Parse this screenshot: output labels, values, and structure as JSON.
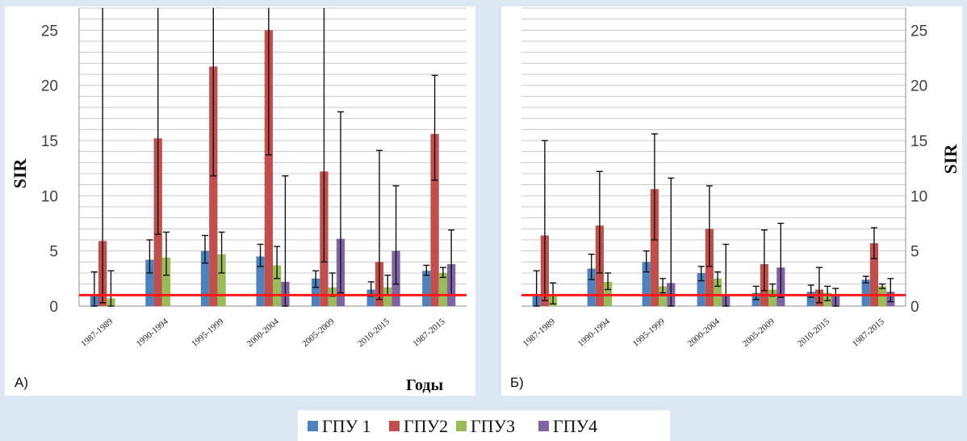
{
  "legend": [
    {
      "name": "ГПУ 1",
      "color": "#4f81bd"
    },
    {
      "name": "ГПУ2",
      "color": "#c0504d"
    },
    {
      "name": "ГПУ3",
      "color": "#9bbb59"
    },
    {
      "name": "ГПУ4",
      "color": "#8064a2"
    }
  ],
  "chart_data": [
    {
      "type": "bar",
      "panel_label": "А)",
      "ylabel": "SIR",
      "xlabel": "Годы",
      "ylim": [
        0,
        27
      ],
      "yticks": [
        0,
        5,
        10,
        15,
        20,
        25
      ],
      "grid": true,
      "y_axis_side": "left",
      "reference_line": 1,
      "categories": [
        "1987-1989",
        "1990-1994",
        "1995-1999",
        "2000-2004",
        "2005-2009",
        "2010-2015",
        "1987-2015"
      ],
      "series": [
        {
          "name": "ГПУ 1",
          "color": "#4f81bd",
          "values": [
            1.0,
            4.2,
            5.0,
            4.5,
            2.5,
            1.5,
            3.2
          ],
          "err_low": [
            0.0,
            3.0,
            3.9,
            3.6,
            1.7,
            0.9,
            2.8
          ],
          "err_high": [
            3.1,
            6.0,
            6.4,
            5.6,
            3.2,
            2.2,
            3.7
          ]
        },
        {
          "name": "ГПУ2",
          "color": "#c0504d",
          "values": [
            5.9,
            15.2,
            21.7,
            25.0,
            12.2,
            4.0,
            15.6
          ],
          "err_low": [
            0.3,
            6.5,
            11.8,
            13.7,
            4.0,
            0.6,
            11.4
          ],
          "err_high": [
            27,
            27,
            27,
            27,
            27,
            14.1,
            20.9
          ]
        },
        {
          "name": "ГПУ3",
          "color": "#9bbb59",
          "values": [
            0.7,
            4.4,
            4.7,
            3.7,
            1.7,
            1.7,
            3.0
          ],
          "err_low": [
            0.0,
            2.8,
            3.0,
            2.5,
            0.9,
            1.0,
            2.6
          ],
          "err_high": [
            3.2,
            6.7,
            6.7,
            5.4,
            3.0,
            2.8,
            3.5
          ]
        },
        {
          "name": "ГПУ4",
          "color": "#8064a2",
          "values": [
            0.0,
            0.0,
            0.0,
            2.2,
            6.1,
            5.0,
            3.8
          ],
          "err_low": [
            0.0,
            0.0,
            0.0,
            0.0,
            1.2,
            2.0,
            1.0
          ],
          "err_high": [
            0.0,
            0.0,
            0.0,
            11.8,
            17.6,
            10.9,
            6.9
          ]
        }
      ]
    },
    {
      "type": "bar",
      "panel_label": "Б)",
      "ylabel": "SIR",
      "xlabel": "",
      "ylim": [
        0,
        27
      ],
      "yticks": [
        0,
        5,
        10,
        15,
        20,
        25
      ],
      "grid": true,
      "y_axis_side": "right",
      "reference_line": 1,
      "categories": [
        "1987-1989",
        "1990-1994",
        "1995-1999",
        "2000-2004",
        "2005-2009",
        "2010-2015",
        "1987-2015"
      ],
      "series": [
        {
          "name": "ГПУ 1",
          "color": "#4f81bd",
          "values": [
            1.0,
            3.4,
            4.0,
            3.0,
            1.2,
            1.3,
            2.4
          ],
          "err_low": [
            0.0,
            2.4,
            3.1,
            2.3,
            0.6,
            0.8,
            2.1
          ],
          "err_high": [
            3.2,
            4.7,
            5.0,
            3.6,
            1.8,
            1.9,
            2.7
          ]
        },
        {
          "name": "ГПУ2",
          "color": "#c0504d",
          "values": [
            6.4,
            7.3,
            10.6,
            7.0,
            3.8,
            1.5,
            5.7
          ],
          "err_low": [
            0.5,
            3.0,
            6.0,
            3.6,
            1.4,
            0.3,
            4.3
          ],
          "err_high": [
            15.0,
            12.2,
            15.6,
            10.9,
            6.9,
            3.5,
            7.1
          ]
        },
        {
          "name": "ГПУ3",
          "color": "#9bbb59",
          "values": [
            1.0,
            2.2,
            1.8,
            2.5,
            1.5,
            1.2,
            1.8
          ],
          "err_low": [
            0.2,
            1.5,
            1.2,
            1.8,
            0.9,
            0.5,
            1.6
          ],
          "err_high": [
            2.1,
            3.0,
            2.5,
            3.1,
            2.0,
            1.8,
            2.0
          ]
        },
        {
          "name": "ГПУ4",
          "color": "#8064a2",
          "values": [
            0.0,
            0.0,
            2.1,
            1.0,
            3.5,
            1.0,
            1.3
          ],
          "err_low": [
            0.0,
            0.0,
            0.0,
            0.0,
            0.8,
            0.0,
            0.4
          ],
          "err_high": [
            0.0,
            0.0,
            11.6,
            5.6,
            7.5,
            1.6,
            2.5
          ]
        }
      ]
    }
  ]
}
